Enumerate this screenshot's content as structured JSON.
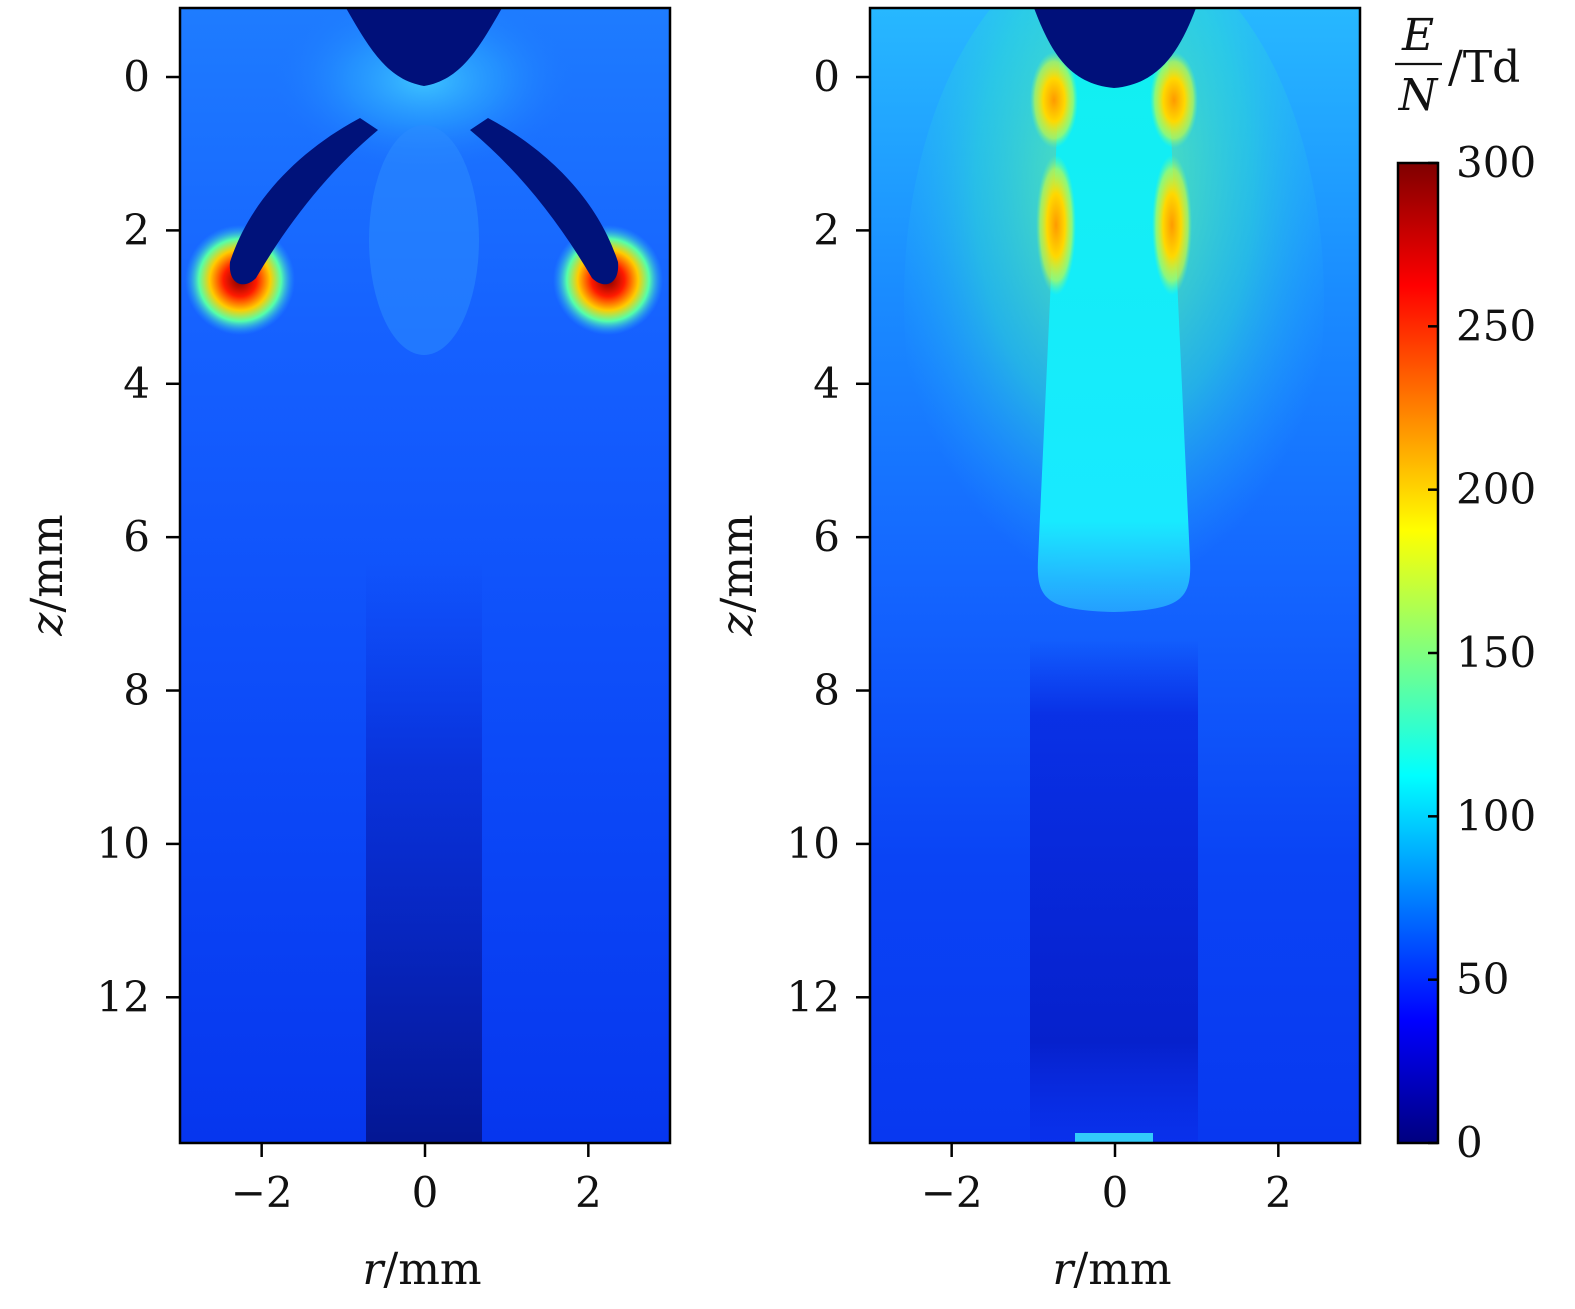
{
  "chart_data": [
    {
      "type": "heatmap",
      "panel": "left",
      "xlabel_var": "r",
      "xlabel_unit": "/mm",
      "ylabel_var": "z",
      "ylabel_unit": "/mm",
      "xlim": [
        -3,
        3
      ],
      "ylim": [
        -0.9,
        13.9
      ],
      "y_inverted": true,
      "xticks": [
        -2,
        0,
        2
      ],
      "xtick_labels": [
        "−2",
        "0",
        "2"
      ],
      "yticks": [
        0,
        2,
        4,
        6,
        8,
        10,
        12
      ],
      "ytick_labels": [
        "0",
        "2",
        "4",
        "6",
        "8",
        "10",
        "12"
      ],
      "background_value": 45,
      "features": [
        {
          "kind": "tip",
          "description": "electrode tip",
          "center_r": 0,
          "bottom_z": 0.1,
          "value": 5
        },
        {
          "kind": "branch",
          "side": "left",
          "from": [
            -0.85,
            0.55
          ],
          "to": [
            -2.3,
            2.7
          ],
          "value": 5
        },
        {
          "kind": "branch",
          "side": "right",
          "from": [
            0.85,
            0.55
          ],
          "to": [
            2.3,
            2.7
          ],
          "value": 5
        },
        {
          "kind": "hotspot",
          "r": -2.3,
          "z": 2.8,
          "value": 300
        },
        {
          "kind": "hotspot",
          "r": 2.3,
          "z": 2.8,
          "value": 300
        },
        {
          "kind": "channel",
          "r_halfwidth": 0.65,
          "z_range": [
            9,
            13.9
          ],
          "value": 15
        }
      ]
    },
    {
      "type": "heatmap",
      "panel": "right",
      "xlabel_var": "r",
      "xlabel_unit": "/mm",
      "ylabel_var": "z",
      "ylabel_unit": "/mm",
      "xlim": [
        -3,
        3
      ],
      "ylim": [
        -0.9,
        13.9
      ],
      "y_inverted": true,
      "xticks": [
        -2,
        0,
        2
      ],
      "xtick_labels": [
        "−2",
        "0",
        "2"
      ],
      "yticks": [
        0,
        2,
        4,
        6,
        8,
        10,
        12
      ],
      "ytick_labels": [
        "0",
        "2",
        "4",
        "6",
        "8",
        "10",
        "12"
      ],
      "background_value": 45,
      "features": [
        {
          "kind": "tip",
          "description": "electrode tip",
          "center_r": 0,
          "bottom_z": 0.15,
          "value": 5
        },
        {
          "kind": "streamer_body",
          "r_halfwidth": 0.9,
          "z_range": [
            0,
            7.2
          ],
          "value": 110
        },
        {
          "kind": "edge_band",
          "side": "left",
          "r": -0.75,
          "z_range": [
            0.2,
            3
          ],
          "value": 210
        },
        {
          "kind": "edge_band",
          "side": "right",
          "r": 0.75,
          "z_range": [
            0.2,
            3
          ],
          "value": 210
        },
        {
          "kind": "low_field_column",
          "r_halfwidth": 1.0,
          "z_range": [
            7.8,
            13.9
          ],
          "value": 25
        }
      ]
    }
  ],
  "colorbar": {
    "label_num": "E",
    "label_den": "N",
    "label_unit": "/Td",
    "min": 0,
    "max": 300,
    "ticks": [
      0,
      50,
      100,
      150,
      200,
      250,
      300
    ],
    "tick_labels": [
      "0",
      "50",
      "100",
      "150",
      "200",
      "250",
      "300"
    ],
    "colormap": "jet",
    "stops": [
      "#00007f",
      "#0000ff",
      "#00ffff",
      "#ffff00",
      "#ff0000",
      "#7f0000"
    ]
  }
}
